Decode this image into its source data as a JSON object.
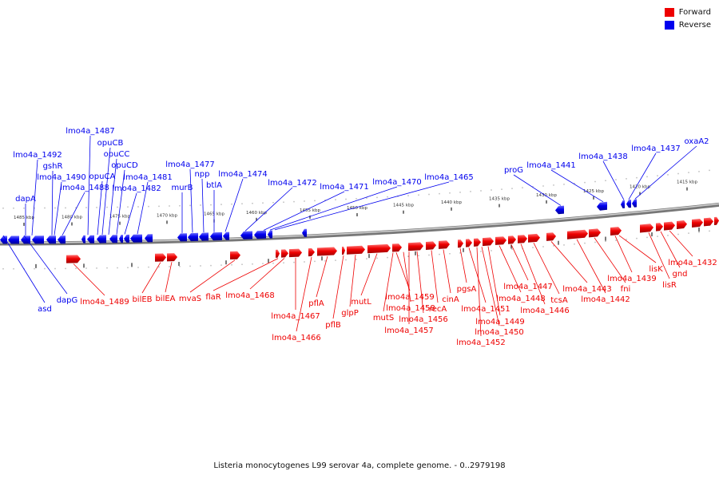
{
  "caption": "Listeria monocytogenes L99 serovar 4a, complete genome. - 0..2979198",
  "legend": [
    {
      "label": "Forward",
      "color": "#ee0000"
    },
    {
      "label": "Reverse",
      "color": "#0000ee"
    }
  ],
  "colors": {
    "forward": "#ee0000",
    "reverse": "#0000ee",
    "backbone": "#888888",
    "tick": "#222222"
  },
  "ticks": [
    {
      "label": "1485 kbp"
    },
    {
      "label": "1480 kbp"
    },
    {
      "label": "1475 kbp"
    },
    {
      "label": "1470 kbp"
    },
    {
      "label": "1465 kbp"
    },
    {
      "label": "1460 kbp"
    },
    {
      "label": "1455 kbp"
    },
    {
      "label": "1450 kbp"
    },
    {
      "label": "1445 kbp"
    },
    {
      "label": "1440 kbp"
    },
    {
      "label": "1435 kbp"
    },
    {
      "label": "1430 kbp"
    },
    {
      "label": "1425 kbp"
    },
    {
      "label": "1420 kbp"
    },
    {
      "label": "1415 kbp"
    }
  ],
  "reverse_genes": [
    {
      "label": "asd"
    },
    {
      "label": "dapG"
    },
    {
      "label": "dapA"
    },
    {
      "label": "lmo4a_1492"
    },
    {
      "label": "gshR"
    },
    {
      "label": "lmo4a_1490"
    },
    {
      "label": "lmo4a_1488"
    },
    {
      "label": "lmo4a_1487"
    },
    {
      "label": "opuCA"
    },
    {
      "label": "opuCB"
    },
    {
      "label": "opuCC"
    },
    {
      "label": "opuCD"
    },
    {
      "label": "lmo4a_1482"
    },
    {
      "label": "lmo4a_1481"
    },
    {
      "label": "murB"
    },
    {
      "label": "lmo4a_1477"
    },
    {
      "label": "npp"
    },
    {
      "label": "btlA"
    },
    {
      "label": "lmo4a_1474"
    },
    {
      "label": "lmo4a_1472"
    },
    {
      "label": "lmo4a_1471"
    },
    {
      "label": "lmo4a_1470"
    },
    {
      "label": "lmo4a_1465"
    },
    {
      "label": "proG"
    },
    {
      "label": "lmo4a_1441"
    },
    {
      "label": "lmo4a_1438"
    },
    {
      "label": "lmo4a_1437"
    },
    {
      "label": "oxaA2"
    }
  ],
  "forward_genes": [
    {
      "label": "lmo4a_1489"
    },
    {
      "label": "bilEB"
    },
    {
      "label": "bilEA"
    },
    {
      "label": "mvaS"
    },
    {
      "label": "flaR"
    },
    {
      "label": "lmo4a_1468"
    },
    {
      "label": "lmo4a_1467"
    },
    {
      "label": "lmo4a_1466"
    },
    {
      "label": "pflA"
    },
    {
      "label": "pflB"
    },
    {
      "label": "glpP"
    },
    {
      "label": "mutL"
    },
    {
      "label": "mutS"
    },
    {
      "label": "lmo4a_1459"
    },
    {
      "label": "lmo4a_1458"
    },
    {
      "label": "lmo4a_1457"
    },
    {
      "label": "lmo4a_1456"
    },
    {
      "label": "recA"
    },
    {
      "label": "cinA"
    },
    {
      "label": "pgsA"
    },
    {
      "label": "lmo4a_1451"
    },
    {
      "label": "lmo4a_1452"
    },
    {
      "label": "lmo4a_1450"
    },
    {
      "label": "lmo4a_1449"
    },
    {
      "label": "lmo4a_1448"
    },
    {
      "label": "lmo4a_1447"
    },
    {
      "label": "lmo4a_1446"
    },
    {
      "label": "tcsA"
    },
    {
      "label": "lmo4a_1443"
    },
    {
      "label": "lmo4a_1442"
    },
    {
      "label": "fni"
    },
    {
      "label": "lmo4a_1439"
    },
    {
      "label": "lisK"
    },
    {
      "label": "lisR"
    },
    {
      "label": "gnd"
    },
    {
      "label": "lmo4a_1432"
    }
  ]
}
